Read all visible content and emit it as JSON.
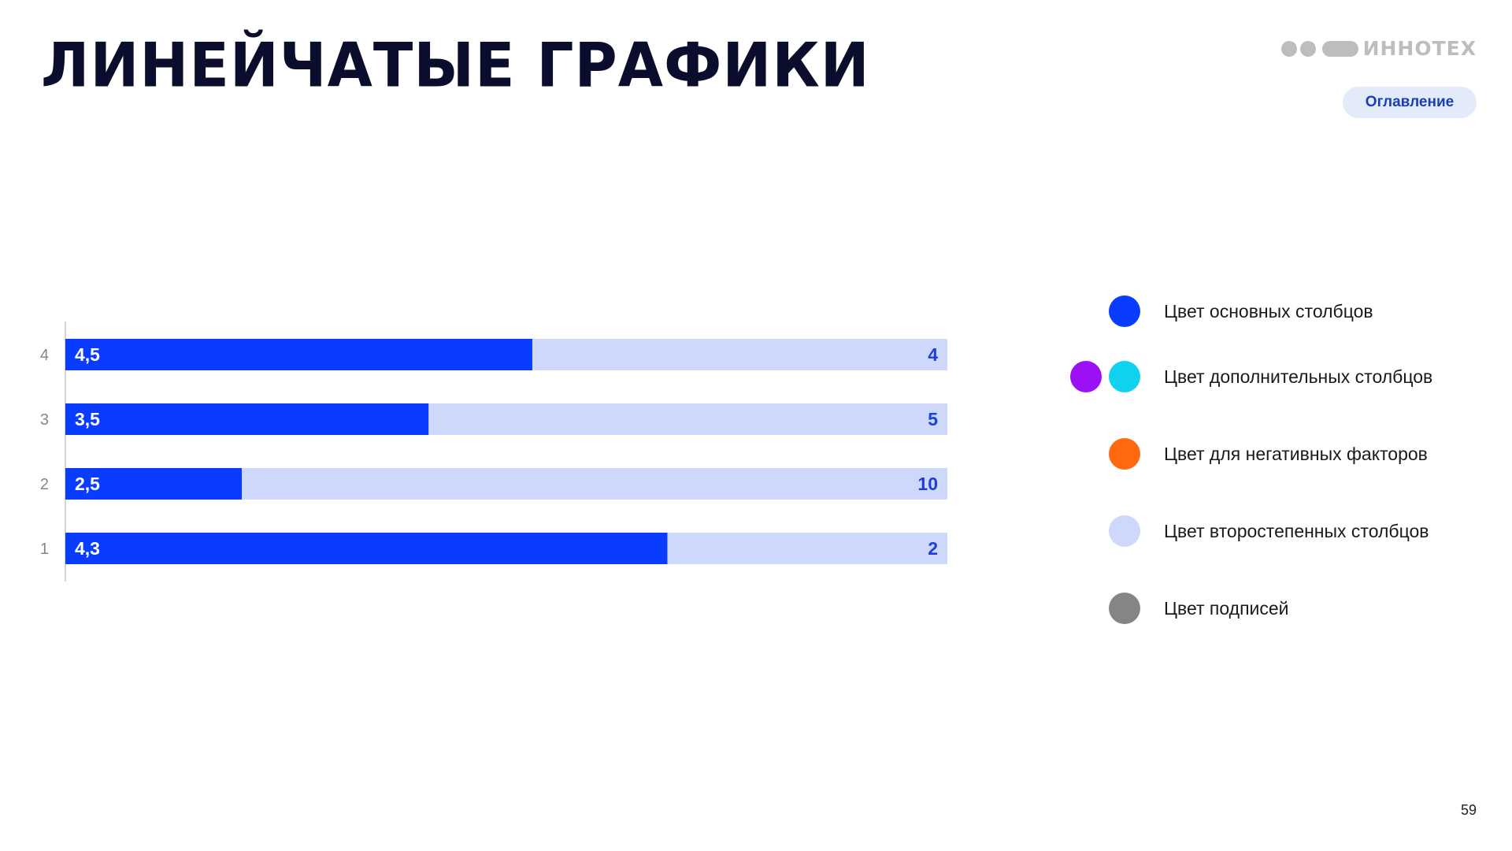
{
  "slide": {
    "title": "ЛИНЕЙЧАТЫЕ ГРАФИКИ",
    "logo_text": "ИННОТЕХ",
    "toc_label": "Оглавление",
    "page_number": "59"
  },
  "colors": {
    "primary": "#0a3cff",
    "secondary": "#cdd8fa",
    "additional_1": "#9b10f5",
    "additional_2": "#0fd2ef",
    "negative": "#ff6a10",
    "captions": "#858585"
  },
  "chart_data": {
    "type": "bar",
    "orientation": "horizontal",
    "stacked": true,
    "categories": [
      "1",
      "2",
      "3",
      "4"
    ],
    "series": [
      {
        "values": [
          4.3,
          2.5,
          3.5,
          4.5
        ],
        "labels": [
          "4,3",
          "2,5",
          "3,5",
          "4,5"
        ],
        "color": "#0a3cff"
      },
      {
        "values": [
          2,
          10,
          5,
          4
        ],
        "labels": [
          "2",
          "10",
          "5",
          "4"
        ],
        "color": "#cdd8fa"
      }
    ],
    "title": "",
    "xlabel": "",
    "ylabel": "",
    "grid": false
  },
  "legend": [
    {
      "label": "Цвет основных столбцов",
      "colors": [
        "#0a3cff"
      ]
    },
    {
      "label": "Цвет дополнительных столбцов",
      "colors": [
        "#9b10f5",
        "#0fd2ef"
      ]
    },
    {
      "label": "Цвет для негативных факторов",
      "colors": [
        "#ff6a10"
      ]
    },
    {
      "label": "Цвет второстепенных столбцов",
      "colors": [
        "#cdd8fa"
      ]
    },
    {
      "label": "Цвет подписей",
      "colors": [
        "#858585"
      ]
    }
  ]
}
